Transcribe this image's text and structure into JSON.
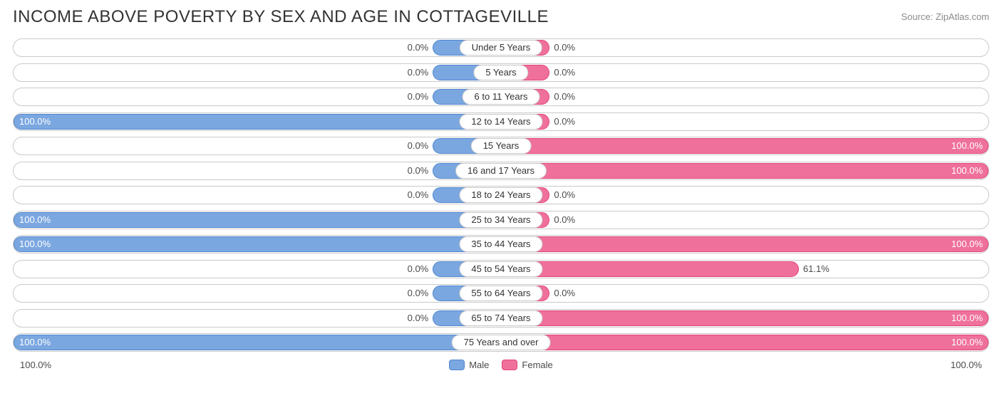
{
  "title": "INCOME ABOVE POVERTY BY SEX AND AGE IN COTTAGEVILLE",
  "source": "Source: ZipAtlas.com",
  "colors": {
    "male_fill": "#7ba7e0",
    "male_border": "#4f86cf",
    "female_fill": "#ef719b",
    "female_border": "#e2447c",
    "row_border": "#c9c9c9",
    "background": "#ffffff",
    "text": "#4a4a4a",
    "title_text": "#333333",
    "source_text": "#8a8a8a"
  },
  "chart": {
    "type": "diverging-bar",
    "male_stub_pct": 14,
    "female_stub_pct": 10,
    "categories": [
      {
        "label": "Under 5 Years",
        "male": 0.0,
        "female": 0.0
      },
      {
        "label": "5 Years",
        "male": 0.0,
        "female": 0.0
      },
      {
        "label": "6 to 11 Years",
        "male": 0.0,
        "female": 0.0
      },
      {
        "label": "12 to 14 Years",
        "male": 100.0,
        "female": 0.0
      },
      {
        "label": "15 Years",
        "male": 0.0,
        "female": 100.0
      },
      {
        "label": "16 and 17 Years",
        "male": 0.0,
        "female": 100.0
      },
      {
        "label": "18 to 24 Years",
        "male": 0.0,
        "female": 0.0
      },
      {
        "label": "25 to 34 Years",
        "male": 100.0,
        "female": 0.0
      },
      {
        "label": "35 to 44 Years",
        "male": 100.0,
        "female": 100.0
      },
      {
        "label": "45 to 54 Years",
        "male": 0.0,
        "female": 61.1
      },
      {
        "label": "55 to 64 Years",
        "male": 0.0,
        "female": 0.0
      },
      {
        "label": "65 to 74 Years",
        "male": 0.0,
        "female": 100.0
      },
      {
        "label": "75 Years and over",
        "male": 100.0,
        "female": 100.0
      }
    ]
  },
  "axis": {
    "left_label": "100.0%",
    "right_label": "100.0%"
  },
  "legend": {
    "male": "Male",
    "female": "Female"
  }
}
